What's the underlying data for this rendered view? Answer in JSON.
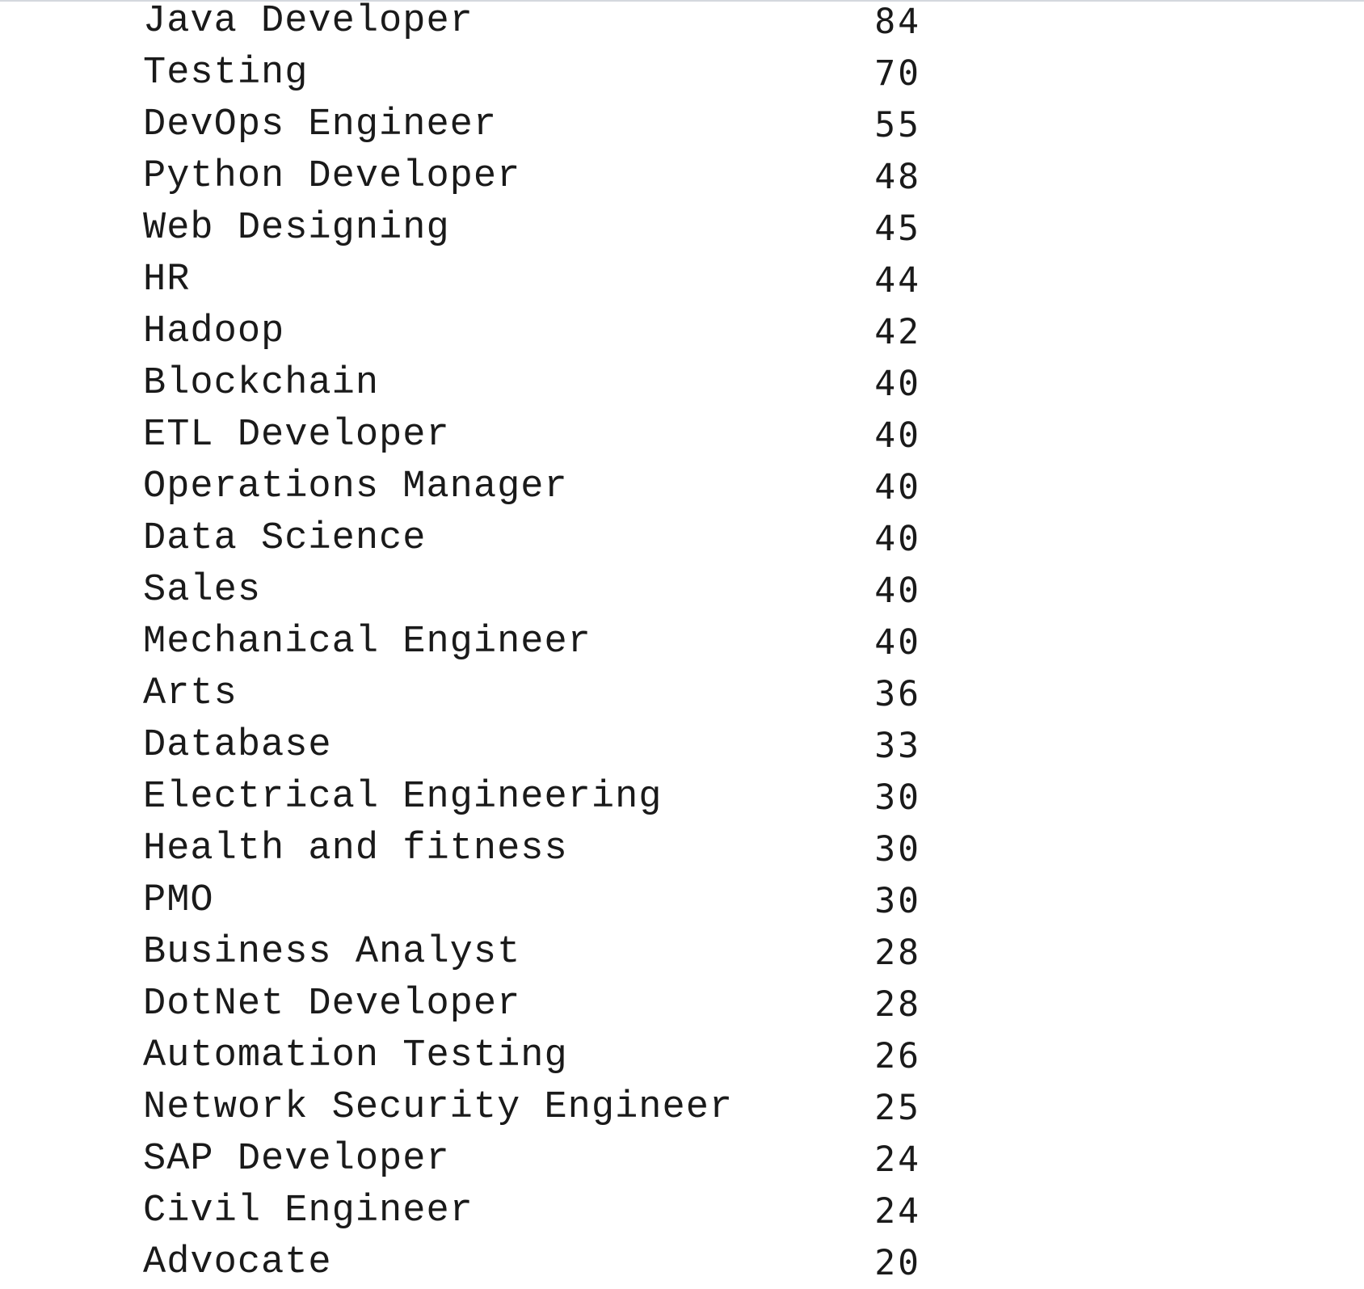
{
  "rows": [
    {
      "label": "Java Developer",
      "count": "84"
    },
    {
      "label": "Testing",
      "count": "70"
    },
    {
      "label": "DevOps Engineer",
      "count": "55"
    },
    {
      "label": "Python Developer",
      "count": "48"
    },
    {
      "label": "Web Designing",
      "count": "45"
    },
    {
      "label": "HR",
      "count": "44"
    },
    {
      "label": "Hadoop",
      "count": "42"
    },
    {
      "label": "Blockchain",
      "count": "40"
    },
    {
      "label": "ETL Developer",
      "count": "40"
    },
    {
      "label": "Operations Manager",
      "count": "40"
    },
    {
      "label": "Data Science",
      "count": "40"
    },
    {
      "label": "Sales",
      "count": "40"
    },
    {
      "label": "Mechanical Engineer",
      "count": "40"
    },
    {
      "label": "Arts",
      "count": "36"
    },
    {
      "label": "Database",
      "count": "33"
    },
    {
      "label": "Electrical Engineering",
      "count": "30"
    },
    {
      "label": "Health and fitness",
      "count": "30"
    },
    {
      "label": "PMO",
      "count": "30"
    },
    {
      "label": "Business Analyst",
      "count": "28"
    },
    {
      "label": "DotNet Developer",
      "count": "28"
    },
    {
      "label": "Automation Testing",
      "count": "26"
    },
    {
      "label": "Network Security Engineer",
      "count": "25"
    },
    {
      "label": "SAP Developer",
      "count": "24"
    },
    {
      "label": "Civil Engineer",
      "count": "24"
    },
    {
      "label": "Advocate",
      "count": "20"
    }
  ]
}
